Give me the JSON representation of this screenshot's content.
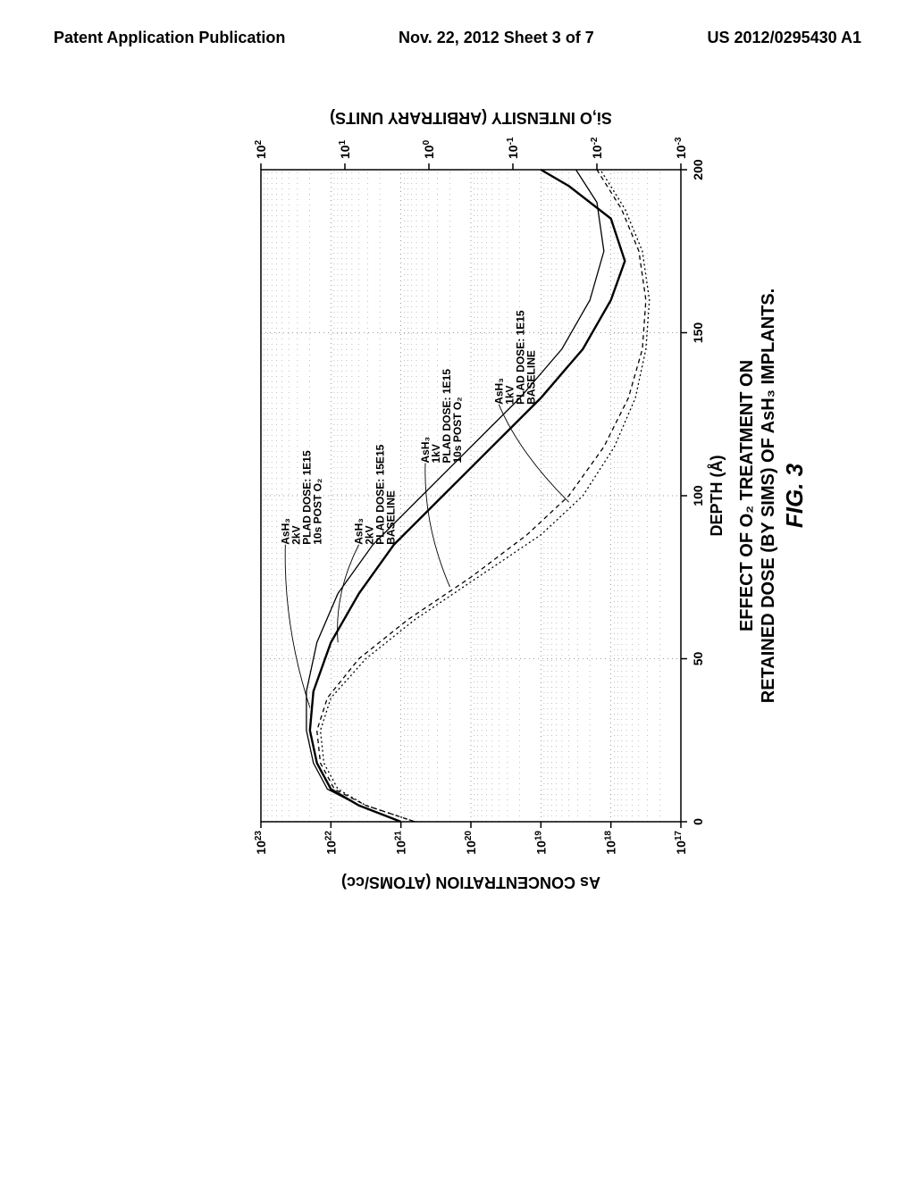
{
  "header": {
    "left": "Patent Application Publication",
    "center": "Nov. 22, 2012  Sheet 3 of 7",
    "right": "US 2012/0295430 A1"
  },
  "figure": {
    "number": "FIG. 3",
    "caption_line1": "EFFECT OF O₂ TREATMENT ON",
    "caption_line2": "RETAINED DOSE (BY SIMS) OF AsH₃ IMPLANTS.",
    "x_axis": {
      "label": "DEPTH (Å)",
      "min": 0,
      "max": 200,
      "ticks": [
        0,
        50,
        100,
        150,
        200
      ]
    },
    "y_left": {
      "label": "As CONCENTRATION (ATOMS/cc)",
      "min_exp": 17,
      "max_exp": 23,
      "ticks_exp": [
        17,
        18,
        19,
        20,
        21,
        22,
        23
      ]
    },
    "y_right": {
      "label": "Si,O INTENSITY (ARBITRARY UNITS)",
      "min_exp": -3,
      "max_exp": 2,
      "ticks_exp": [
        -3,
        -2,
        -1,
        0,
        1,
        2
      ]
    },
    "colors": {
      "axis": "#000000",
      "grid": "#000000",
      "bg": "#ffffff"
    },
    "styles": {
      "axis_width": 1.5,
      "grid_width": 0.4,
      "curve_width": 1.6
    },
    "curves": [
      {
        "id": "2kv_post_o2",
        "label": [
          "AsH₃",
          "2kV",
          "PLAD DOSE: 1E15",
          "10s POST O₂"
        ],
        "color": "#000",
        "width": 1.3,
        "dash": null,
        "pts": [
          [
            0,
            21.0
          ],
          [
            5,
            21.6
          ],
          [
            10,
            22.05
          ],
          [
            18,
            22.25
          ],
          [
            28,
            22.35
          ],
          [
            40,
            22.35
          ],
          [
            55,
            22.2
          ],
          [
            70,
            21.9
          ],
          [
            85,
            21.4
          ],
          [
            100,
            20.7
          ],
          [
            115,
            20.0
          ],
          [
            130,
            19.3
          ],
          [
            145,
            18.7
          ],
          [
            160,
            18.3
          ],
          [
            175,
            18.1
          ],
          [
            190,
            18.2
          ],
          [
            200,
            18.5
          ]
        ]
      },
      {
        "id": "2kv_baseline",
        "label": [
          "AsH₃",
          "2kV",
          "PLAD DOSE: 15E15",
          "BASELINE"
        ],
        "color": "#000",
        "width": 2.4,
        "dash": null,
        "pts": [
          [
            0,
            21.0
          ],
          [
            5,
            21.6
          ],
          [
            10,
            22.0
          ],
          [
            18,
            22.2
          ],
          [
            28,
            22.3
          ],
          [
            40,
            22.25
          ],
          [
            55,
            22.0
          ],
          [
            70,
            21.6
          ],
          [
            85,
            21.1
          ],
          [
            100,
            20.4
          ],
          [
            115,
            19.7
          ],
          [
            130,
            19.0
          ],
          [
            145,
            18.4
          ],
          [
            160,
            18.0
          ],
          [
            172,
            17.8
          ],
          [
            185,
            18.0
          ],
          [
            195,
            18.6
          ],
          [
            200,
            19.0
          ]
        ]
      },
      {
        "id": "1kv_post_o2",
        "label": [
          "AsH₃",
          "1kV",
          "PLAD DOSE: 1E15",
          "10s POST O₂"
        ],
        "color": "#000",
        "width": 1.3,
        "dash": "5,4",
        "pts": [
          [
            0,
            20.8
          ],
          [
            5,
            21.5
          ],
          [
            10,
            21.95
          ],
          [
            18,
            22.15
          ],
          [
            28,
            22.2
          ],
          [
            38,
            22.05
          ],
          [
            50,
            21.6
          ],
          [
            62,
            20.9
          ],
          [
            75,
            20.0
          ],
          [
            88,
            19.2
          ],
          [
            100,
            18.6
          ],
          [
            115,
            18.1
          ],
          [
            130,
            17.75
          ],
          [
            145,
            17.55
          ],
          [
            160,
            17.5
          ],
          [
            175,
            17.6
          ],
          [
            188,
            17.85
          ],
          [
            200,
            18.2
          ]
        ]
      },
      {
        "id": "1kv_baseline",
        "label": [
          "AsH₃",
          "1kV",
          "PLAD DOSE: 1E15",
          "BASELINE"
        ],
        "color": "#000",
        "width": 1.3,
        "dash": "2,3",
        "pts": [
          [
            0,
            20.8
          ],
          [
            5,
            21.5
          ],
          [
            10,
            21.9
          ],
          [
            18,
            22.1
          ],
          [
            28,
            22.15
          ],
          [
            38,
            22.0
          ],
          [
            50,
            21.5
          ],
          [
            62,
            20.8
          ],
          [
            75,
            19.9
          ],
          [
            88,
            19.0
          ],
          [
            100,
            18.4
          ],
          [
            115,
            17.95
          ],
          [
            130,
            17.65
          ],
          [
            145,
            17.5
          ],
          [
            160,
            17.45
          ],
          [
            175,
            17.55
          ],
          [
            188,
            17.8
          ],
          [
            200,
            18.15
          ]
        ]
      }
    ],
    "annotations": [
      {
        "ref": "2kv_post_o2",
        "text_at": [
          85,
          22.6
        ],
        "leader_to": [
          35,
          22.3
        ]
      },
      {
        "ref": "2kv_baseline",
        "text_at": [
          85,
          21.55
        ],
        "leader_to": [
          55,
          21.9
        ]
      },
      {
        "ref": "1kv_post_o2",
        "text_at": [
          110,
          20.6
        ],
        "leader_to": [
          72,
          20.3
        ]
      },
      {
        "ref": "1kv_baseline",
        "text_at": [
          128,
          19.55
        ],
        "leader_to": [
          98,
          18.6
        ]
      }
    ]
  }
}
